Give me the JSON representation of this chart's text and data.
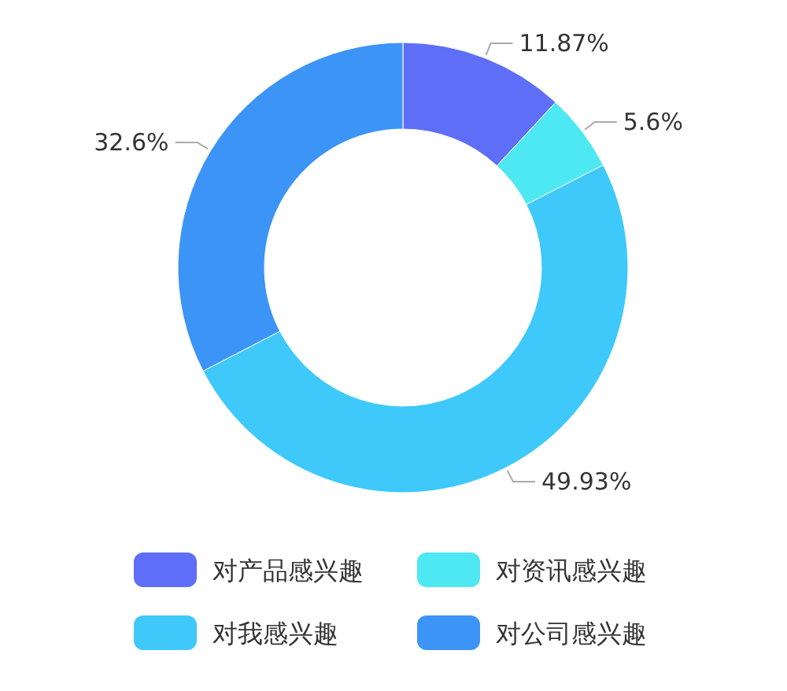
{
  "chart_data": {
    "type": "donut",
    "categories": [
      "对产品感兴趣",
      "对资讯感兴趣",
      "对我感兴趣",
      "对公司感兴趣"
    ],
    "values": [
      11.87,
      5.6,
      49.93,
      32.6
    ],
    "colors": [
      "#5f6ef6",
      "#4de8f2",
      "#3ec9fa",
      "#3c94f7"
    ],
    "value_labels": [
      "11.87%",
      "5.6%",
      "49.93%",
      "32.6%"
    ],
    "legend": "bottom"
  }
}
